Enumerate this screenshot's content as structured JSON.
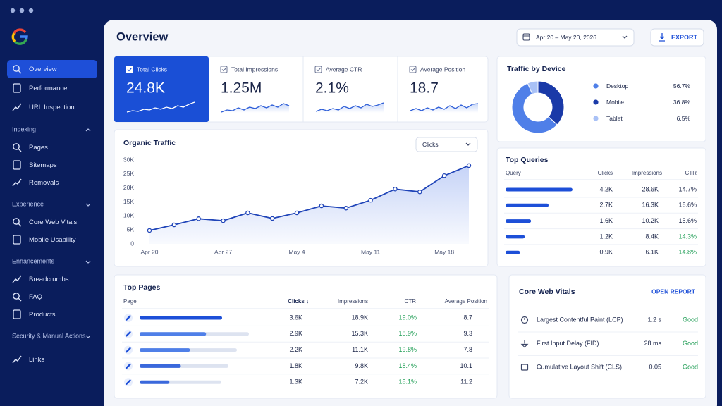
{
  "sidebar": {
    "top": [
      "Overview",
      "Performance",
      "URL Inspection"
    ],
    "sections": [
      {
        "title": "Indexing",
        "items": [
          "Pages",
          "Sitemaps",
          "Removals"
        ]
      },
      {
        "title": "Experience",
        "items": [
          "Core Web Vitals",
          "Mobile Usability"
        ]
      },
      {
        "title": "Enhancements",
        "items": [
          "Breadcrumbs",
          "FAQ",
          "Products"
        ]
      },
      {
        "title": "Security & Manual Actions",
        "items": []
      }
    ],
    "bottom": [
      "Links"
    ]
  },
  "header": {
    "title": "Overview",
    "date_range": "Apr 20 – May 20, 2026",
    "export": "EXPORT"
  },
  "kpis": [
    {
      "label": "Total Clicks",
      "value": "24.8K"
    },
    {
      "label": "Total Impressions",
      "value": "1.25M"
    },
    {
      "label": "Average CTR",
      "value": "2.1%"
    },
    {
      "label": "Average Position",
      "value": "18.7"
    }
  ],
  "organic_traffic": {
    "type": "line",
    "title": "Organic Traffic",
    "filter": "Clicks",
    "categories": [
      "Apr 20",
      null,
      null,
      "Apr 27",
      null,
      null,
      "May 4",
      null,
      null,
      "May 11",
      null,
      null,
      "May 18",
      null
    ],
    "values": [
      4800,
      6800,
      9000,
      8300,
      11100,
      9100,
      11100,
      13600,
      12800,
      15600,
      19600,
      18600,
      24400,
      28000
    ],
    "color": "#1f44b8",
    "ylim": [
      0,
      30000
    ],
    "yticks": [
      0,
      {
        "value": 5000,
        "label": "5K"
      },
      {
        "value": 10000,
        "label": "10K"
      },
      {
        "value": 15000,
        "label": "15K"
      },
      {
        "value": 20000,
        "label": "20K"
      },
      {
        "value": 25000,
        "label": "25K"
      },
      {
        "value": 30000,
        "label": "30K"
      }
    ]
  },
  "traffic_by_device": {
    "type": "pie",
    "title": "Traffic by Device",
    "categories": [
      "Desktop",
      "Mobile",
      "Tablet"
    ],
    "values": [
      56.7,
      36.8,
      6.5
    ],
    "value_labels": [
      "56.7%",
      "36.8%",
      "6.5%"
    ],
    "colors": [
      "#4f7fe8",
      "#1a3aa8",
      "#a9c1f6"
    ]
  },
  "top_queries": {
    "title": "Top Queries",
    "columns": [
      "Query",
      "Clicks",
      "Impressions",
      "CTR"
    ],
    "clicks": {
      "values": [
        4200,
        2700,
        1600,
        1200,
        900
      ],
      "value_labels": [
        "4.2K",
        "2.7K",
        "1.6K",
        "1.2K",
        "0.9K"
      ]
    },
    "impressions": [
      "28.6K",
      "16.3K",
      "10.2K",
      "8.4K",
      "6.1K"
    ],
    "ctr": [
      "14.7%",
      "16.6%",
      "15.6%",
      "14.3%",
      "14.8%"
    ],
    "ctr_colors": [
      "#1b2548",
      "#1b2548",
      "#1b2548",
      "#1f9d55",
      "#1f9d55"
    ],
    "bar_color": "#1d4fd8"
  },
  "top_pages": {
    "title": "Top Pages",
    "columns": [
      "Page",
      "Clicks ↓",
      "Impressions",
      "CTR",
      "Average Position"
    ],
    "clicks": {
      "values": [
        3600,
        2900,
        2200,
        1800,
        1300
      ],
      "value_labels": [
        "3.6K",
        "2.9K",
        "2.2K",
        "1.8K",
        "1.3K"
      ]
    },
    "impressions": [
      "18.9K",
      "15.3K",
      "11.1K",
      "9.8K",
      "7.2K"
    ],
    "ctr": [
      "19.0%",
      "18.9%",
      "19.8%",
      "18.4%",
      "18.1%"
    ],
    "avg_position": [
      8.7,
      9.3,
      7.8,
      10.1,
      11.2
    ],
    "ctr_color": "#1f9d55",
    "bar_colors": [
      "#1d4fd8",
      "#4f7fe8",
      "#4f7fe8",
      "#3a68dc",
      "#3a68dc"
    ]
  },
  "core_web_vitals": {
    "title": "Core Web Vitals",
    "action": "OPEN REPORT",
    "rows": [
      {
        "name": "Largest Contentful Paint (LCP)",
        "value": "1.2 s",
        "status": "Good"
      },
      {
        "name": "First Input Delay (FID)",
        "value": "28 ms",
        "status": "Good"
      },
      {
        "name": "Cumulative Layout Shift (CLS)",
        "value": 0.05,
        "status": "Good"
      }
    ],
    "status_color": "#1f9d55"
  }
}
